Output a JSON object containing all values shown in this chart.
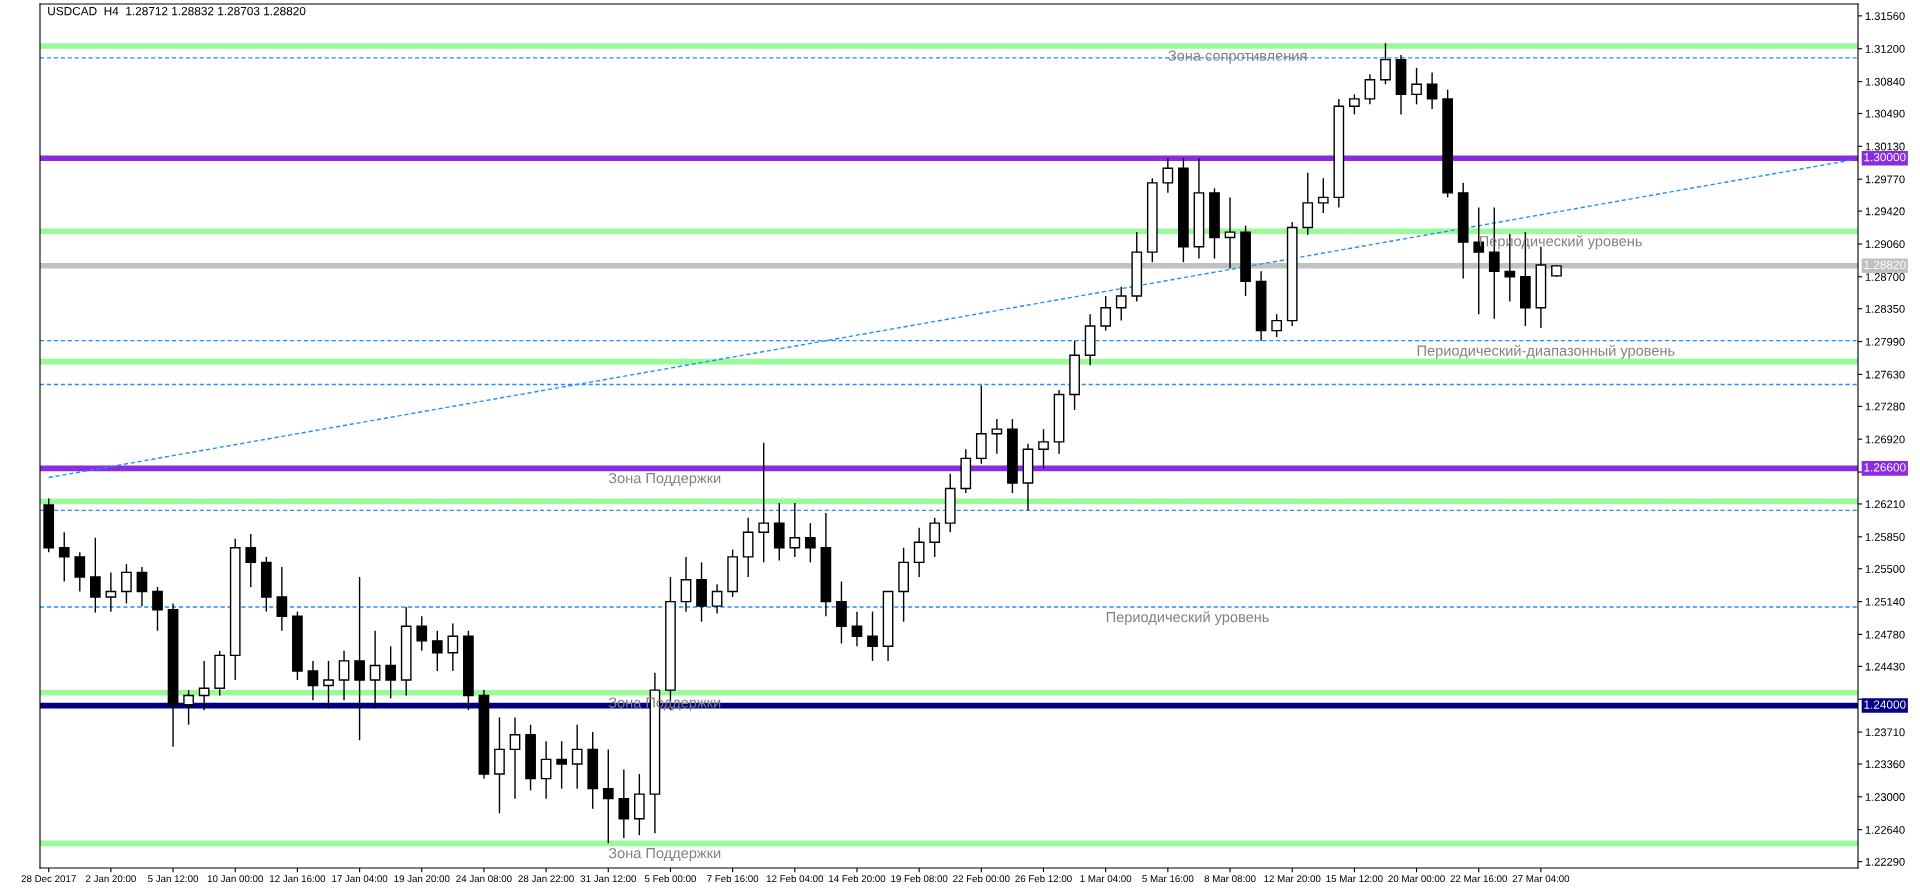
{
  "chart_data": {
    "type": "candlestick",
    "title": "USDCAD  H4  1.28712 1.28832 1.28703 1.28820",
    "categories": [
      "28 Dec 2017",
      null,
      null,
      null,
      "2 Jan 20:00",
      null,
      null,
      null,
      "5 Jan 12:00",
      null,
      null,
      null,
      "10 Jan 00:00",
      null,
      null,
      null,
      "12 Jan 16:00",
      null,
      null,
      null,
      "17 Jan 04:00",
      null,
      null,
      null,
      "19 Jan 20:00",
      null,
      null,
      null,
      "24 Jan 08:00",
      null,
      null,
      null,
      "28 Jan 22:00",
      null,
      null,
      null,
      "31 Jan 12:00",
      null,
      null,
      null,
      "5 Feb 00:00",
      null,
      null,
      null,
      "7 Feb 16:00",
      null,
      null,
      null,
      "12 Feb 04:00",
      null,
      null,
      null,
      "14 Feb 20:00",
      null,
      null,
      null,
      "19 Feb 08:00",
      null,
      null,
      null,
      "22 Feb 00:00",
      null,
      null,
      null,
      "26 Feb 12:00",
      null,
      null,
      null,
      "1 Mar 04:00",
      null,
      null,
      null,
      "5 Mar 16:00",
      null,
      null,
      null,
      "8 Mar 08:00",
      null,
      null,
      null,
      "12 Mar 20:00",
      null,
      null,
      null,
      "15 Mar 12:00",
      null,
      null,
      null,
      "20 Mar 00:00",
      null,
      null,
      null,
      "22 Mar 16:00",
      null,
      null,
      null,
      "27 Mar 04:00",
      null,
      null,
      null,
      null,
      null,
      null,
      null,
      null,
      null,
      null,
      null,
      null,
      null,
      null,
      null,
      null,
      null,
      null,
      null,
      null
    ],
    "ohlc": [
      [
        1.262,
        1.2627,
        1.2568,
        1.2573
      ],
      [
        1.2573,
        1.259,
        1.2536,
        1.2563
      ],
      [
        1.2563,
        1.2568,
        1.2525,
        1.2541
      ],
      [
        1.2541,
        1.2584,
        1.2502,
        1.2519
      ],
      [
        1.2519,
        1.2546,
        1.2503,
        1.2525
      ],
      [
        1.2525,
        1.2555,
        1.2512,
        1.2546
      ],
      [
        1.2546,
        1.2552,
        1.2509,
        1.2525
      ],
      [
        1.2525,
        1.253,
        1.2482,
        1.2505
      ],
      [
        1.2505,
        1.2512,
        1.2355,
        1.2401
      ],
      [
        1.2401,
        1.2417,
        1.2379,
        1.2411
      ],
      [
        1.2411,
        1.2449,
        1.2395,
        1.2419
      ],
      [
        1.2419,
        1.246,
        1.2411,
        1.2455
      ],
      [
        1.2455,
        1.2583,
        1.2428,
        1.2573
      ],
      [
        1.2573,
        1.2588,
        1.253,
        1.2557
      ],
      [
        1.2557,
        1.2563,
        1.2503,
        1.2519
      ],
      [
        1.2519,
        1.2552,
        1.2482,
        1.2498
      ],
      [
        1.2498,
        1.2503,
        1.2428,
        1.2438
      ],
      [
        1.2438,
        1.2449,
        1.2406,
        1.2422
      ],
      [
        1.2422,
        1.2449,
        1.2397,
        1.2428
      ],
      [
        1.2428,
        1.246,
        1.2406,
        1.2449
      ],
      [
        1.2449,
        1.2541,
        1.2362,
        1.2428
      ],
      [
        1.2428,
        1.2482,
        1.2397,
        1.2444
      ],
      [
        1.2444,
        1.2465,
        1.2408,
        1.2428
      ],
      [
        1.2428,
        1.2508,
        1.2411,
        1.2487
      ],
      [
        1.2487,
        1.2498,
        1.246,
        1.2471
      ],
      [
        1.2471,
        1.2482,
        1.2438,
        1.2458
      ],
      [
        1.2458,
        1.249,
        1.2438,
        1.2476
      ],
      [
        1.2476,
        1.2482,
        1.2395,
        1.2411
      ],
      [
        1.2411,
        1.2417,
        1.232,
        1.2325
      ],
      [
        1.2325,
        1.2387,
        1.2282,
        1.2352
      ],
      [
        1.2352,
        1.2387,
        1.2298,
        1.2368
      ],
      [
        1.2368,
        1.2379,
        1.2307,
        1.232
      ],
      [
        1.232,
        1.2361,
        1.2298,
        1.2341
      ],
      [
        1.2341,
        1.2361,
        1.2309,
        1.2336
      ],
      [
        1.2336,
        1.2379,
        1.2309,
        1.2352
      ],
      [
        1.2352,
        1.2371,
        1.2287,
        1.2309
      ],
      [
        1.2309,
        1.2352,
        1.2249,
        1.2298
      ],
      [
        1.2298,
        1.233,
        1.2255,
        1.2276
      ],
      [
        1.2276,
        1.2325,
        1.2258,
        1.2303
      ],
      [
        1.2303,
        1.2436,
        1.226,
        1.2417
      ],
      [
        1.2417,
        1.2541,
        1.2395,
        1.2514
      ],
      [
        1.2514,
        1.2563,
        1.2503,
        1.2538
      ],
      [
        1.2538,
        1.2557,
        1.2492,
        1.2509
      ],
      [
        1.2509,
        1.2533,
        1.2501,
        1.2525
      ],
      [
        1.2525,
        1.2571,
        1.2519,
        1.2563
      ],
      [
        1.2563,
        1.2606,
        1.2541,
        1.259
      ],
      [
        1.259,
        1.2688,
        1.2557,
        1.26
      ],
      [
        1.26,
        1.2622,
        1.2559,
        1.2573
      ],
      [
        1.2573,
        1.2622,
        1.2563,
        1.2584
      ],
      [
        1.2584,
        1.26,
        1.2557,
        1.2573
      ],
      [
        1.2573,
        1.2611,
        1.2498,
        1.2514
      ],
      [
        1.2514,
        1.2536,
        1.2468,
        1.2487
      ],
      [
        1.2487,
        1.2503,
        1.2465,
        1.2476
      ],
      [
        1.2476,
        1.2503,
        1.2449,
        1.2465
      ],
      [
        1.2465,
        1.2525,
        1.2449,
        1.2525
      ],
      [
        1.2525,
        1.2573,
        1.2492,
        1.2557
      ],
      [
        1.2557,
        1.2595,
        1.2541,
        1.2579
      ],
      [
        1.2579,
        1.2606,
        1.2563,
        1.26
      ],
      [
        1.26,
        1.2654,
        1.259,
        1.2638
      ],
      [
        1.2638,
        1.2681,
        1.2633,
        1.2671
      ],
      [
        1.2671,
        1.2751,
        1.2665,
        1.2698
      ],
      [
        1.2698,
        1.2714,
        1.2676,
        1.2703
      ],
      [
        1.2703,
        1.2714,
        1.2633,
        1.2644
      ],
      [
        1.2644,
        1.2687,
        1.2614,
        1.2681
      ],
      [
        1.2681,
        1.2703,
        1.266,
        1.2689
      ],
      [
        1.2689,
        1.2746,
        1.2676,
        1.2741
      ],
      [
        1.2741,
        1.28,
        1.2724,
        1.2784
      ],
      [
        1.2784,
        1.2829,
        1.2773,
        1.2816
      ],
      [
        1.2816,
        1.2849,
        1.2811,
        1.2836
      ],
      [
        1.2836,
        1.2859,
        1.2822,
        1.2849
      ],
      [
        1.2849,
        1.2919,
        1.2843,
        1.2897
      ],
      [
        1.2897,
        1.2978,
        1.2886,
        1.2973
      ],
      [
        1.2973,
        1.3,
        1.2962,
        1.2989
      ],
      [
        1.2989,
        1.3,
        1.2886,
        1.2903
      ],
      [
        1.2903,
        1.3,
        1.289,
        1.2962
      ],
      [
        1.2962,
        1.2967,
        1.289,
        1.2913
      ],
      [
        1.2913,
        1.2957,
        1.2879,
        1.2919
      ],
      [
        1.2919,
        1.2926,
        1.2849,
        1.2865
      ],
      [
        1.2865,
        1.2876,
        1.28,
        1.2811
      ],
      [
        1.2811,
        1.2829,
        1.2804,
        1.2822
      ],
      [
        1.2822,
        1.293,
        1.2816,
        1.2924
      ],
      [
        1.2924,
        1.2984,
        1.2916,
        1.2951
      ],
      [
        1.2951,
        1.2978,
        1.294,
        1.2957
      ],
      [
        1.2957,
        1.3065,
        1.2946,
        1.3057
      ],
      [
        1.3057,
        1.307,
        1.3048,
        1.3065
      ],
      [
        1.3065,
        1.3092,
        1.3059,
        1.3086
      ],
      [
        1.3086,
        1.3126,
        1.3081,
        1.3108
      ],
      [
        1.3108,
        1.3113,
        1.3048,
        1.307
      ],
      [
        1.307,
        1.3099,
        1.3059,
        1.3081
      ],
      [
        1.3081,
        1.3094,
        1.3054,
        1.3065
      ],
      [
        1.3065,
        1.3075,
        1.2957,
        1.2962
      ],
      [
        1.2962,
        1.2973,
        1.2868,
        1.2908
      ],
      [
        1.2908,
        1.2946,
        1.2829,
        1.2897
      ],
      [
        1.2897,
        1.2946,
        1.2824,
        1.2876
      ],
      [
        1.2876,
        1.2917,
        1.2843,
        1.287
      ],
      [
        1.287,
        1.2919,
        1.2816,
        1.2836
      ],
      [
        1.2836,
        1.2903,
        1.2814,
        1.2883
      ],
      [
        1.2871,
        1.2883,
        1.287,
        1.2882
      ],
      null,
      null,
      null,
      null,
      null,
      null,
      null,
      null,
      null,
      null,
      null,
      null,
      null,
      null,
      null,
      null,
      null,
      null,
      null
    ],
    "series": [
      {
        "type": "line",
        "color": "#1e90ff",
        "line_style": "dashed",
        "values": [
          1.265,
          null,
          null,
          null,
          null,
          null,
          null,
          null,
          null,
          null,
          null,
          null,
          null,
          null,
          null,
          null,
          null,
          null,
          null,
          null,
          null,
          null,
          null,
          null,
          null,
          null,
          null,
          null,
          null,
          null,
          null,
          null,
          null,
          null,
          null,
          null,
          null,
          null,
          null,
          null,
          null,
          null,
          null,
          null,
          null,
          null,
          null,
          null,
          null,
          null,
          null,
          null,
          null,
          null,
          null,
          null,
          null,
          null,
          null,
          null,
          null,
          null,
          null,
          null,
          null,
          null,
          null,
          null,
          null,
          null,
          null,
          null,
          null,
          null,
          null,
          null,
          null,
          null,
          null,
          null,
          null,
          null,
          null,
          null,
          null,
          null,
          null,
          null,
          null,
          null,
          null,
          null,
          null,
          null,
          null,
          null,
          null,
          null,
          null,
          null,
          null,
          null,
          null,
          null,
          null,
          null,
          null,
          null,
          null,
          null,
          null,
          null,
          null,
          null,
          null,
          null,
          1.2998
        ]
      }
    ],
    "ylim": [
      1.2222,
      1.3169
    ],
    "yticks": [
      {
        "value": 1.2229,
        "label": "1.22290"
      },
      {
        "value": 1.2264,
        "label": "1.22640"
      },
      {
        "value": 1.23,
        "label": "1.23000"
      },
      {
        "value": 1.2336,
        "label": "1.23360"
      },
      {
        "value": 1.2371,
        "label": "1.23710"
      },
      {
        "value": 1.2407,
        "label": null
      },
      {
        "value": 1.2443,
        "label": "1.24430"
      },
      {
        "value": 1.2478,
        "label": "1.24780"
      },
      {
        "value": 1.2514,
        "label": "1.25140"
      },
      {
        "value": 1.255,
        "label": "1.25500"
      },
      {
        "value": 1.2585,
        "label": "1.25850"
      },
      {
        "value": 1.2621,
        "label": "1.26210"
      },
      {
        "value": 1.2656,
        "label": null
      },
      {
        "value": 1.2692,
        "label": "1.26920"
      },
      {
        "value": 1.2728,
        "label": "1.27280"
      },
      {
        "value": 1.2763,
        "label": "1.27630"
      },
      {
        "value": 1.2799,
        "label": "1.27990"
      },
      {
        "value": 1.2835,
        "label": "1.28350"
      },
      {
        "value": 1.287,
        "label": "1.28700"
      },
      {
        "value": 1.2906,
        "label": "1.29060"
      },
      {
        "value": 1.2942,
        "label": "1.29420"
      },
      {
        "value": 1.2977,
        "label": "1.29770"
      },
      {
        "value": 1.3013,
        "label": "1.30130"
      },
      {
        "value": 1.3049,
        "label": "1.30490"
      },
      {
        "value": 1.3084,
        "label": "1.30840"
      },
      {
        "value": 1.312,
        "label": "1.31200"
      },
      {
        "value": 1.3156,
        "label": "1.31560"
      }
    ],
    "ref_lines": [
      {
        "axis": "y",
        "value": 1.3123,
        "color": "#98fb98",
        "line_style": "solid"
      },
      {
        "axis": "y",
        "value": 1.311,
        "color": "#1e90ff",
        "line_style": "dashed"
      },
      {
        "axis": "y",
        "value": 1.3,
        "color": "#8a2be2",
        "line_style": "solid",
        "label": "1.30000"
      },
      {
        "axis": "y",
        "value": 1.292,
        "color": "#98fb98",
        "line_style": "solid"
      },
      {
        "axis": "y",
        "value": 1.2882,
        "color": "#c0c0c0",
        "line_style": "solid",
        "label": "1.28820"
      },
      {
        "axis": "y",
        "value": 1.28,
        "color": "#1e90ff",
        "line_style": "dashed"
      },
      {
        "axis": "y",
        "value": 1.2777,
        "color": "#98fb98",
        "line_style": "solid"
      },
      {
        "axis": "y",
        "value": 1.2752,
        "color": "#1e90ff",
        "line_style": "dashed"
      },
      {
        "axis": "y",
        "value": 1.266,
        "color": "#8a2be2",
        "line_style": "solid",
        "label": "1.26600"
      },
      {
        "axis": "y",
        "value": 1.2624,
        "color": "#98fb98",
        "line_style": "solid"
      },
      {
        "axis": "y",
        "value": 1.2614,
        "color": "#1e90ff",
        "line_style": "dashed"
      },
      {
        "axis": "y",
        "value": 1.2508,
        "color": "#1e90ff",
        "line_style": "dashed"
      },
      {
        "axis": "y",
        "value": 1.2414,
        "color": "#98fb98",
        "line_style": "solid"
      },
      {
        "axis": "y",
        "value": 1.24,
        "color": "#000080",
        "line_style": "solid",
        "label": "1.24000"
      },
      {
        "axis": "y",
        "value": 1.2249,
        "color": "#98fb98",
        "line_style": "solid"
      }
    ],
    "annotations": [
      {
        "text": "Зона сопротивления",
        "x": "5 Mar 16:00",
        "y": 1.3123
      },
      {
        "text": "Периодический уровень",
        "x": "22 Mar 16:00",
        "y": 1.292
      },
      {
        "text": "Периодический-диапазонный уровень",
        "x": "20 Mar 00:00",
        "y": 1.28
      },
      {
        "text": "Зона Поддержки",
        "x": "31 Jan 12:00",
        "y": 1.266
      },
      {
        "text": "Периодический уровень",
        "x": "1 Mar 04:00",
        "y": 1.2508
      },
      {
        "text": "Зона Поддержки",
        "x": "31 Jan 12:00",
        "y": 1.2414
      },
      {
        "text": "Зона Поддержки",
        "x": "31 Jan 12:00",
        "y": 1.2249
      }
    ],
    "grid": false,
    "legend": false
  }
}
